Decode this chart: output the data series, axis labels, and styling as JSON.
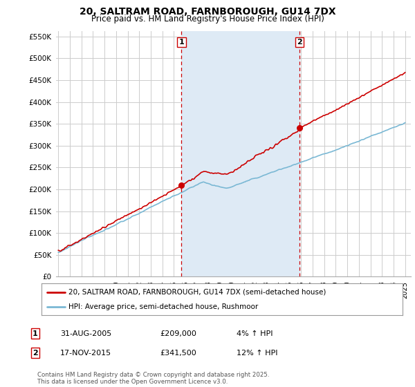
{
  "title": "20, SALTRAM ROAD, FARNBOROUGH, GU14 7DX",
  "subtitle": "Price paid vs. HM Land Registry's House Price Index (HPI)",
  "ylim": [
    0,
    562500
  ],
  "yticks": [
    0,
    50000,
    100000,
    150000,
    200000,
    250000,
    300000,
    350000,
    400000,
    450000,
    500000,
    550000
  ],
  "xlim_start": 1994.8,
  "xlim_end": 2025.5,
  "sale1_year": 2005.66,
  "sale1_price": 209000,
  "sale2_year": 2015.88,
  "sale2_price": 341500,
  "red_line_color": "#cc0000",
  "blue_line_color": "#7ab8d4",
  "shade_color": "#deeaf5",
  "dashed_line_color": "#cc0000",
  "marker_color": "#cc0000",
  "background_color": "#ffffff",
  "grid_color": "#cccccc",
  "legend_label_red": "20, SALTRAM ROAD, FARNBOROUGH, GU14 7DX (semi-detached house)",
  "legend_label_blue": "HPI: Average price, semi-detached house, Rushmoor",
  "table_row1": [
    "1",
    "31-AUG-2005",
    "£209,000",
    "4% ↑ HPI"
  ],
  "table_row2": [
    "2",
    "17-NOV-2015",
    "£341,500",
    "12% ↑ HPI"
  ],
  "footer": "Contains HM Land Registry data © Crown copyright and database right 2025.\nThis data is licensed under the Open Government Licence v3.0."
}
